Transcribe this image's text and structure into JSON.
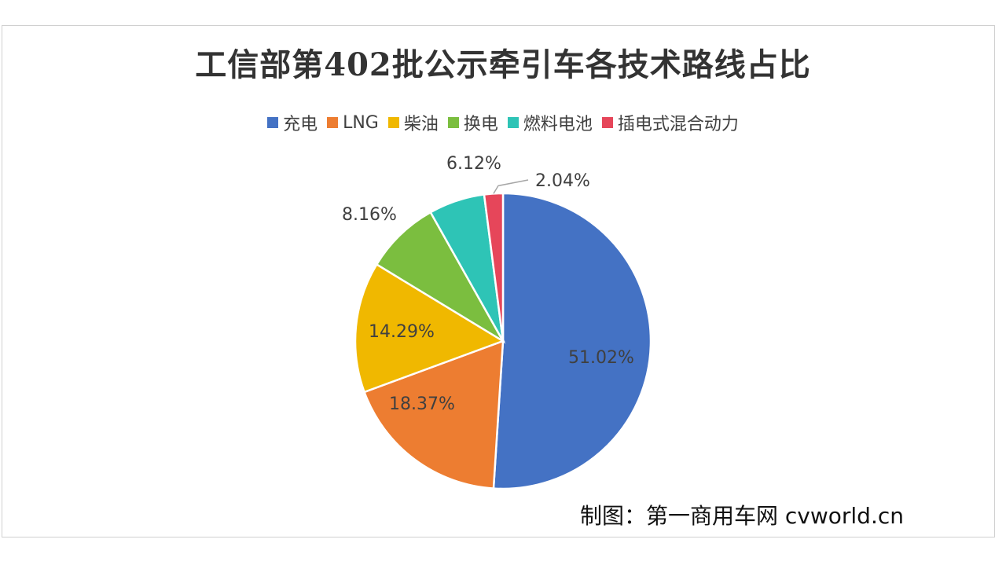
{
  "chart_data": {
    "type": "pie",
    "title": "工信部第402批公示牵引车各技术路线占比",
    "categories": [
      "充电",
      "LNG",
      "柴油",
      "换电",
      "燃料电池",
      "插电式混合动力"
    ],
    "values": [
      51.02,
      18.37,
      14.29,
      8.16,
      6.12,
      2.04
    ],
    "labels": [
      "51.02%",
      "18.37%",
      "14.29%",
      "8.16%",
      "6.12%",
      "2.04%"
    ],
    "colors": [
      "#4472C4",
      "#ED7D31",
      "#F0B800",
      "#7BBE3F",
      "#2EC4B6",
      "#E6465A"
    ],
    "legend_position": "top"
  },
  "credit": "制图：第一商用车网 cvworld.cn"
}
